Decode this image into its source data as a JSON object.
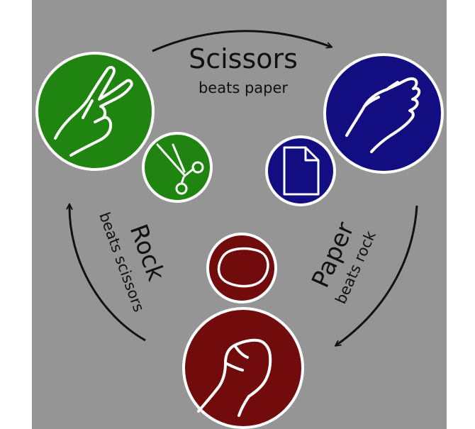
{
  "labels": {
    "scissors": {
      "title": "Scissors",
      "subtitle": "beats paper"
    },
    "rock": {
      "title": "Rock",
      "subtitle": "beats scissors"
    },
    "paper": {
      "title": "Paper",
      "subtitle": "beats rock"
    }
  },
  "colors": {
    "background": "#959595",
    "scissors": "#1f8410",
    "paper": "#120e82",
    "rock": "#720c0c",
    "outline": "#ffffff",
    "arrow": "#111111"
  },
  "icons": {
    "scissors_hand": "v-sign-hand-icon",
    "scissors_object": "scissors-icon",
    "paper_hand": "open-hand-icon",
    "paper_object": "document-icon",
    "rock_hand": "fist-icon",
    "rock_object": "rock-icon"
  }
}
